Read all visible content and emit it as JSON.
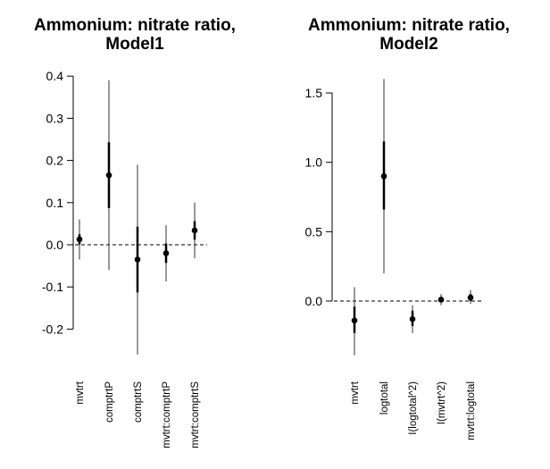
{
  "chart_data": [
    {
      "type": "scatter",
      "title_lines": [
        "Ammonium: nitrate ratio,",
        "Model1"
      ],
      "xlabel": "",
      "ylabel": "",
      "ylim": [
        -0.26,
        0.4
      ],
      "yticks": [
        -0.2,
        -0.1,
        0.0,
        0.1,
        0.2,
        0.3,
        0.4
      ],
      "ytick_labels": [
        "-0.2",
        "-0.1",
        "0.0",
        "0.1",
        "0.2",
        "0.3",
        "0.4"
      ],
      "reference_line": 0,
      "categories": [
        "mvtrt",
        "comptrtP",
        "comptrtS",
        "mvtrt:comptrtP",
        "mvtrt:comptrtS"
      ],
      "estimates": [
        0.013,
        0.165,
        -0.035,
        -0.02,
        0.034
      ],
      "inner_interval": [
        [
          0.001,
          0.025
        ],
        [
          0.087,
          0.243
        ],
        [
          -0.113,
          0.043
        ],
        [
          -0.043,
          0.003
        ],
        [
          0.012,
          0.056
        ]
      ],
      "outer_interval": [
        [
          -0.035,
          0.06
        ],
        [
          -0.06,
          0.39
        ],
        [
          -0.26,
          0.19
        ],
        [
          -0.087,
          0.047
        ],
        [
          -0.032,
          0.1
        ]
      ]
    },
    {
      "type": "scatter",
      "title_lines": [
        "Ammonium: nitrate ratio,",
        "Model2"
      ],
      "xlabel": "",
      "ylabel": "",
      "ylim": [
        -0.4,
        1.6
      ],
      "yticks": [
        0.0,
        0.5,
        1.0,
        1.5
      ],
      "ytick_labels": [
        "0.0",
        "0.5",
        "1.0",
        "1.5"
      ],
      "reference_line": 0,
      "categories": [
        "mvtrt",
        "logtotal",
        "I(logtotal^2)",
        "I(mvtrt^2)",
        "mvtrt:logtotal"
      ],
      "estimates": [
        -0.14,
        0.9,
        -0.13,
        0.01,
        0.025
      ],
      "inner_interval": [
        [
          -0.23,
          -0.04
        ],
        [
          0.66,
          1.15
        ],
        [
          -0.18,
          -0.07
        ],
        [
          -0.01,
          0.03
        ],
        [
          0.0,
          0.05
        ]
      ],
      "outer_interval": [
        [
          -0.39,
          0.1
        ],
        [
          0.2,
          1.6
        ],
        [
          -0.23,
          -0.03
        ],
        [
          -0.03,
          0.05
        ],
        [
          -0.02,
          0.08
        ]
      ]
    }
  ]
}
